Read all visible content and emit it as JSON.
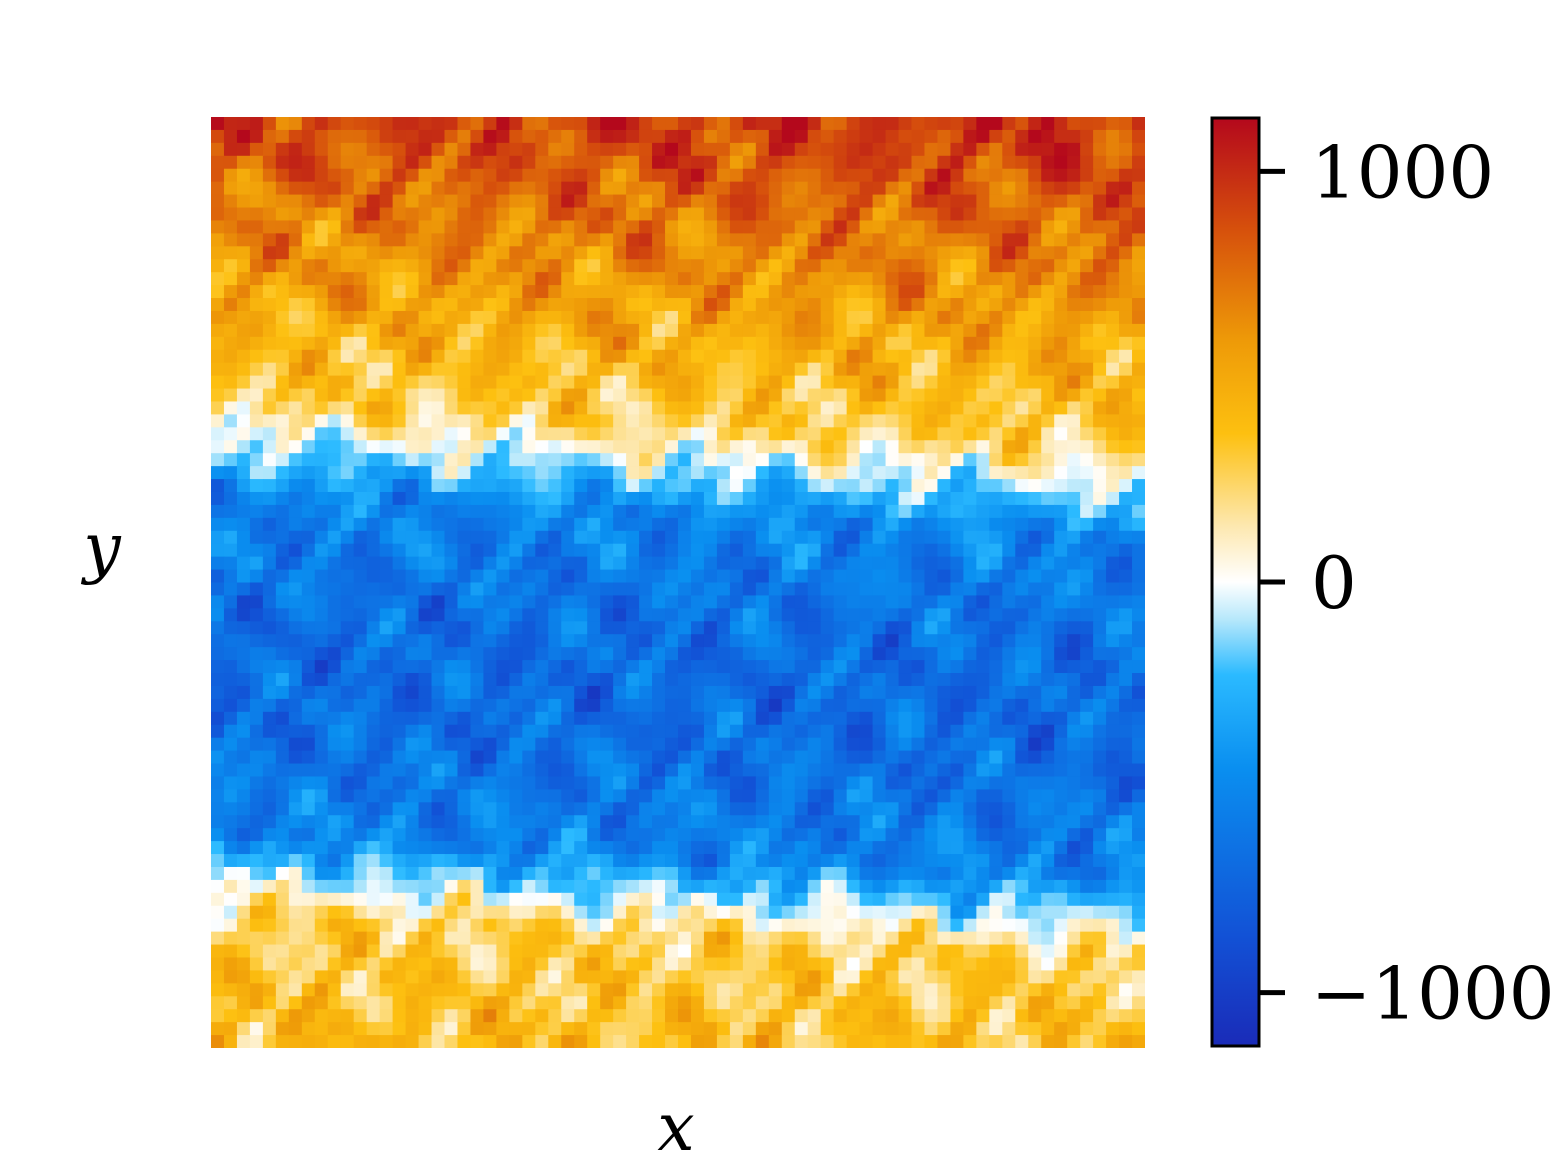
{
  "chart_data": {
    "type": "heatmap",
    "title": "",
    "xlabel": "x",
    "ylabel": "y",
    "colorbar": {
      "ticks": [
        {
          "value": 1000,
          "label": "1000"
        },
        {
          "value": 0,
          "label": "0"
        },
        {
          "value": -1000,
          "label": "−1000"
        }
      ],
      "range": [
        -1130,
        1130
      ],
      "colormap": [
        {
          "t": 0.0,
          "color": "#1a2bb8"
        },
        {
          "t": 0.12,
          "color": "#1252d6"
        },
        {
          "t": 0.3,
          "color": "#0a8ff0"
        },
        {
          "t": 0.4,
          "color": "#2bbaff"
        },
        {
          "t": 0.46,
          "color": "#b7e8fb"
        },
        {
          "t": 0.5,
          "color": "#ffffff"
        },
        {
          "t": 0.56,
          "color": "#fde8b0"
        },
        {
          "t": 0.66,
          "color": "#fdc010"
        },
        {
          "t": 0.76,
          "color": "#ee9a08"
        },
        {
          "t": 0.88,
          "color": "#d6500c"
        },
        {
          "t": 1.0,
          "color": "#b4081c"
        }
      ]
    },
    "field_description_bands": [
      {
        "y_from": 1.0,
        "y_to": 0.68,
        "level": "positive-high"
      },
      {
        "y_from": 0.68,
        "y_to": 0.62,
        "level": "near-zero"
      },
      {
        "y_from": 0.62,
        "y_to": 0.15,
        "level": "negative"
      },
      {
        "y_from": 0.15,
        "y_to": 0.0,
        "level": "positive-low"
      }
    ],
    "grid": false,
    "legend": "colorbar-right"
  }
}
